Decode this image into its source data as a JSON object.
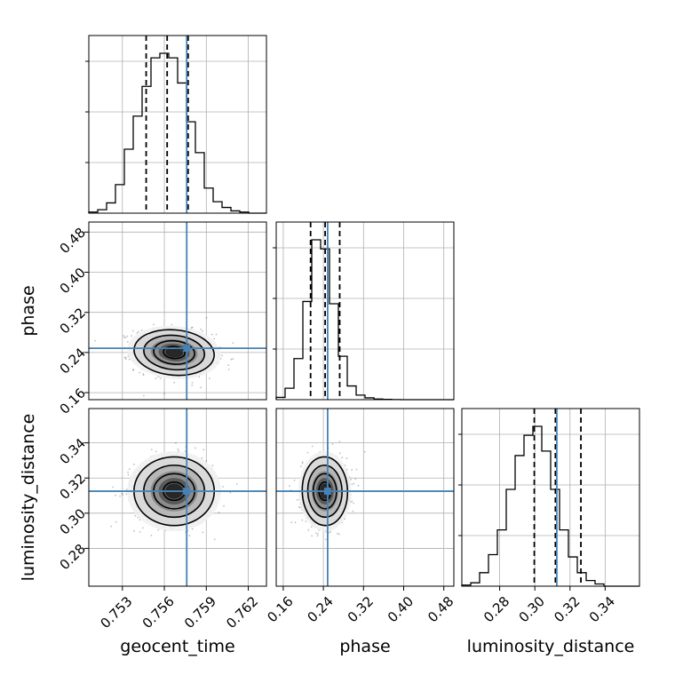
{
  "chart_data": {
    "type": "corner",
    "parameters": [
      "geocent_time",
      "phase",
      "luminosity_distance"
    ],
    "ranges": {
      "geocent_time": [
        0.7506,
        0.7633
      ],
      "phase": [
        0.146,
        0.5
      ],
      "luminosity_distance": [
        0.2585,
        0.3595
      ]
    },
    "ticks": {
      "geocent_time": [
        "0.753",
        "0.756",
        "0.759",
        "0.762"
      ],
      "phase": [
        "0.16",
        "0.24",
        "0.32",
        "0.40",
        "0.48"
      ],
      "luminosity_distance": [
        "0.28",
        "0.30",
        "0.32",
        "0.34"
      ]
    },
    "truth": {
      "geocent_time": 0.7576,
      "phase": 0.2485,
      "luminosity_distance": 0.3125
    },
    "quantiles": {
      "geocent_time": [
        0.7547,
        0.7562,
        0.7577
      ],
      "phase": [
        0.2145,
        0.2435,
        0.2725
      ],
      "luminosity_distance": [
        0.2997,
        0.3117,
        0.3262
      ]
    },
    "histograms": {
      "geocent_time": {
        "edges_start": 0.7506,
        "bin_width": 0.000635,
        "counts": [
          0.5,
          1.5,
          4.5,
          12.5,
          28,
          42.5,
          55.5,
          68,
          70,
          68,
          57,
          40,
          26.5,
          11,
          5,
          2.5,
          1,
          0.5,
          0,
          0
        ]
      },
      "phase": {
        "edges_start": 0.146,
        "bin_width": 0.0177,
        "counts": [
          1,
          5,
          18,
          43,
          70,
          66,
          42,
          19,
          6,
          2,
          0.8,
          0.3,
          0.15,
          0.05,
          0,
          0,
          0,
          0,
          0,
          0
        ]
      },
      "luminosity_distance": {
        "edges_start": 0.2585,
        "bin_width": 0.00505,
        "counts": [
          0.5,
          1.5,
          6,
          14,
          25,
          43,
          58,
          67,
          71,
          60,
          43,
          25,
          13,
          6,
          2.5,
          1,
          0,
          0,
          0,
          0
        ]
      }
    },
    "pairs": [
      {
        "x": "geocent_time",
        "y": "phase",
        "mean": [
          0.7567,
          0.24
        ],
        "sd": [
          0.0014,
          0.022
        ],
        "rho": -0.15
      },
      {
        "x": "geocent_time",
        "y": "luminosity_distance",
        "mean": [
          0.7567,
          0.3125
        ],
        "sd": [
          0.0014,
          0.0095
        ],
        "rho": 0.0
      },
      {
        "x": "phase",
        "y": "luminosity_distance",
        "mean": [
          0.243,
          0.3125
        ],
        "sd": [
          0.022,
          0.0095
        ],
        "rho": 0.05
      }
    ],
    "truth_color": "#4682b4",
    "hist_color": "#000000",
    "grid": true
  }
}
